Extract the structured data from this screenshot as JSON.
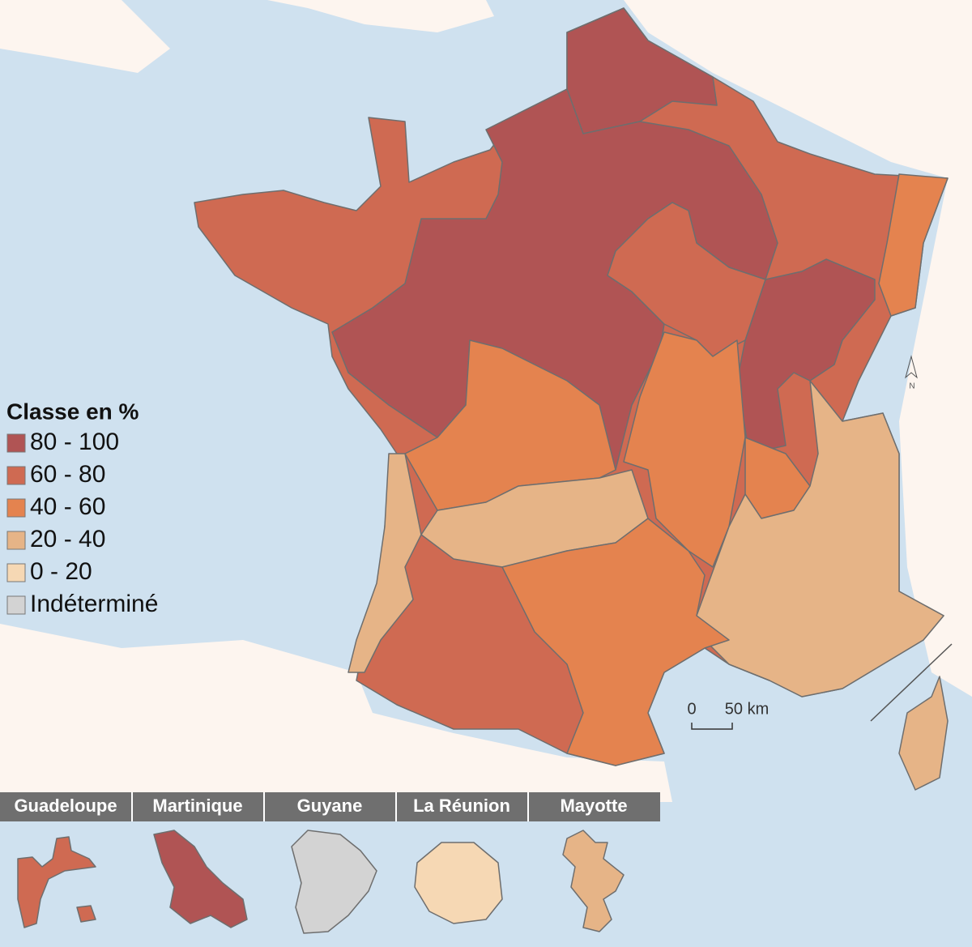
{
  "legend": {
    "title": "Classe en %",
    "items": [
      {
        "label": "80 - 100",
        "color": "#b05454"
      },
      {
        "label": "60 - 80",
        "color": "#cf6a52"
      },
      {
        "label": "40 - 60",
        "color": "#e4834f"
      },
      {
        "label": "20 - 40",
        "color": "#e6b487"
      },
      {
        "label": "0 - 20",
        "color": "#f6d8b4"
      },
      {
        "label": "Indéterminé",
        "color": "#d3d3d3"
      }
    ]
  },
  "scale": {
    "start": "0",
    "end": "50 km"
  },
  "north": "N",
  "overseas": [
    "Guadeloupe",
    "Martinique",
    "Guyane",
    "La Réunion",
    "Mayotte"
  ]
}
